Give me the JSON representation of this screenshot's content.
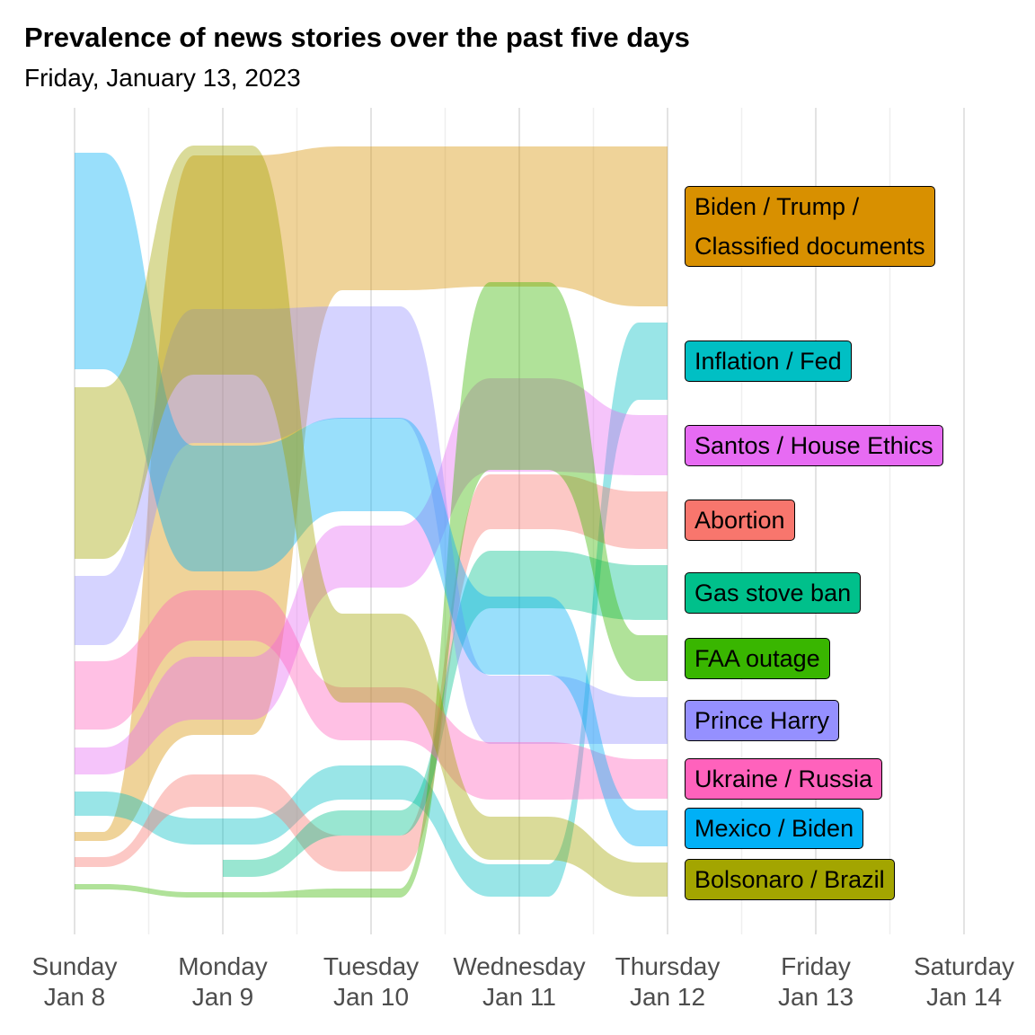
{
  "chart_data": {
    "type": "bump area",
    "title": "Prevalence of news stories over the past five days",
    "subtitle": "Friday, January 13, 2023",
    "xlabel": "",
    "ylabel": "",
    "x_ticks": [
      {
        "line1": "Sunday",
        "line2": "Jan  8"
      },
      {
        "line1": "Monday",
        "line2": "Jan  9"
      },
      {
        "line1": "Tuesday",
        "line2": "Jan 10"
      },
      {
        "line1": "Wednesday",
        "line2": "Jan 11"
      },
      {
        "line1": "Thursday",
        "line2": "Jan 12"
      },
      {
        "line1": "Friday",
        "line2": "Jan 13"
      },
      {
        "line1": "Saturday",
        "line2": "Jan 14"
      }
    ],
    "grid": "vertical",
    "legend": "right",
    "series": [
      {
        "name": "Biden / Trump / Classified documents",
        "label_lines": [
          "Biden / Trump /",
          "Classified documents"
        ],
        "color": "#D89000",
        "bands": [
          [
            null,
            null
          ],
          [
            926,
            936
          ],
          [
            173,
            818
          ],
          [
            163,
            323
          ],
          [
            163,
            319
          ],
          [
            163,
            341
          ]
        ]
      },
      {
        "name": "Inflation / Fed",
        "label_lines": [
          "Inflation / Fed"
        ],
        "color": "#00BFC4",
        "bands": [
          [
            null,
            null
          ],
          [
            881,
            908
          ],
          [
            911,
            940
          ],
          [
            852,
            890
          ],
          [
            962,
            998
          ],
          [
            359,
            445
          ]
        ]
      },
      {
        "name": "Santos / House Ethics",
        "label_lines": [
          "Santos / House Ethics"
        ],
        "color": "#E76BF3",
        "bands": [
          [
            null,
            null
          ],
          [
            832,
            862
          ],
          [
            731,
            801
          ],
          [
            585,
            654
          ],
          [
            421,
            525
          ],
          [
            462,
            529
          ]
        ]
      },
      {
        "name": "Abortion",
        "label_lines": [
          "Abortion"
        ],
        "color": "#F8766D",
        "bands": [
          [
            null,
            null
          ],
          [
            954,
            965
          ],
          [
            862,
            898
          ],
          [
            930,
            970
          ],
          [
            528,
            589
          ],
          [
            547,
            611
          ]
        ]
      },
      {
        "name": "Gas stove ban",
        "label_lines": [
          "Gas stove ban"
        ],
        "color": "#00C08B",
        "bands": [
          [
            null,
            null
          ],
          [
            null,
            null
          ],
          [
            957,
            976
          ],
          [
            902,
            930
          ],
          [
            613,
            677
          ],
          [
            629,
            690
          ]
        ]
      },
      {
        "name": "FAA outage",
        "label_lines": [
          "FAA outage"
        ],
        "color": "#39B600",
        "bands": [
          [
            null,
            null
          ],
          [
            984,
            990
          ],
          [
            993,
            999
          ],
          [
            989,
            999
          ],
          [
            314,
            523
          ],
          [
            707,
            758
          ]
        ]
      },
      {
        "name": "Prince Harry",
        "label_lines": [
          "Prince Harry"
        ],
        "color": "#9590FF",
        "bands": [
          [
            null,
            null
          ],
          [
            641,
            718
          ],
          [
            344,
            493
          ],
          [
            341,
            466
          ],
          [
            752,
            828
          ],
          [
            776,
            828
          ]
        ]
      },
      {
        "name": "Ukraine / Russia",
        "label_lines": [
          "Ukraine / Russia"
        ],
        "color": "#FF62BC",
        "bands": [
          [
            null,
            null
          ],
          [
            736,
            812
          ],
          [
            657,
            713
          ],
          [
            765,
            824
          ],
          [
            826,
            890
          ],
          [
            845,
            889
          ]
        ]
      },
      {
        "name": "Mexico / Biden",
        "label_lines": [
          "Mexico / Biden"
        ],
        "color": "#00B0F6",
        "bands": [
          [
            null,
            null
          ],
          [
            170,
            411
          ],
          [
            496,
            636
          ],
          [
            465,
            569
          ],
          [
            664,
            751
          ],
          [
            902,
            942
          ]
        ]
      },
      {
        "name": "Bolsonaro / Brazil",
        "label_lines": [
          "Bolsonaro / Brazil"
        ],
        "color": "#A3A500",
        "bands": [
          [
            null,
            null
          ],
          [
            431,
            622
          ],
          [
            162,
            417
          ],
          [
            683,
            782
          ],
          [
            909,
            957
          ],
          [
            960,
            998
          ]
        ]
      }
    ]
  }
}
